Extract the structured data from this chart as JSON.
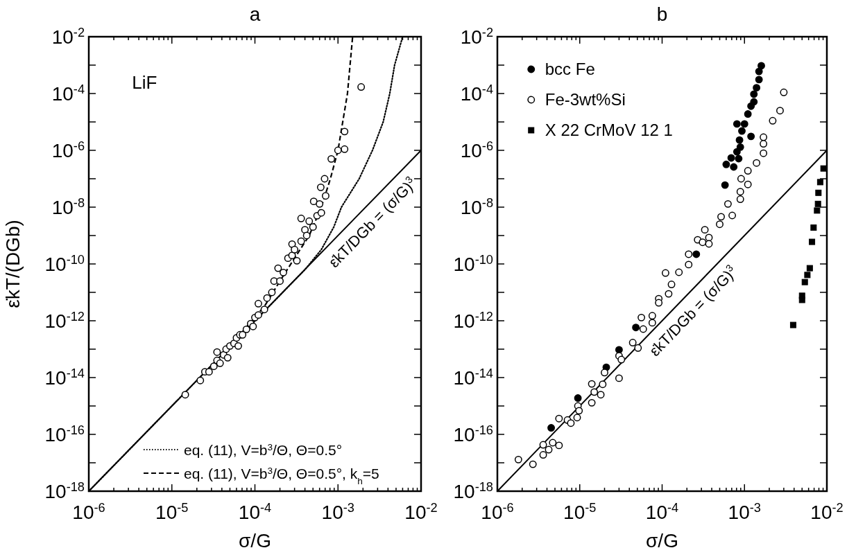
{
  "chart_data": [
    {
      "type": "scatter",
      "title": "a",
      "xlabel": "σ/G",
      "ylabel": "ε̇kT/(DGb)",
      "log": "xy",
      "xlim": [
        1e-06,
        0.01
      ],
      "ylim": [
        1e-18,
        0.01
      ],
      "xticks": [
        {
          "value": 1e-06,
          "label": "10$^{-6}$"
        },
        {
          "value": 2e-06,
          "label": null
        },
        {
          "value": 3e-06,
          "label": null
        },
        {
          "value": 4e-06,
          "label": null
        },
        {
          "value": 5e-06,
          "label": null
        },
        {
          "value": 6e-06,
          "label": null
        },
        {
          "value": 7e-06,
          "label": null
        },
        {
          "value": 8e-06,
          "label": null
        },
        {
          "value": 9e-06,
          "label": null
        },
        {
          "value": 1e-05,
          "label": "10$^{-5}$"
        },
        {
          "value": 2e-05,
          "label": null
        },
        {
          "value": 3e-05,
          "label": null
        },
        {
          "value": 4e-05,
          "label": null
        },
        {
          "value": 5e-05,
          "label": null
        },
        {
          "value": 6e-05,
          "label": null
        },
        {
          "value": 7e-05,
          "label": null
        },
        {
          "value": 8e-05,
          "label": null
        },
        {
          "value": 9e-05,
          "label": null
        },
        {
          "value": 0.0001,
          "label": "10$^{-4}$"
        },
        {
          "value": 0.0002,
          "label": null
        },
        {
          "value": 0.0003,
          "label": null
        },
        {
          "value": 0.0004,
          "label": null
        },
        {
          "value": 0.0005,
          "label": null
        },
        {
          "value": 0.0006,
          "label": null
        },
        {
          "value": 0.0007,
          "label": null
        },
        {
          "value": 0.0008,
          "label": null
        },
        {
          "value": 0.0009,
          "label": null
        },
        {
          "value": 0.001,
          "label": "10$^{-3}$"
        },
        {
          "value": 0.002,
          "label": null
        },
        {
          "value": 0.003,
          "label": null
        },
        {
          "value": 0.004,
          "label": null
        },
        {
          "value": 0.005,
          "label": null
        },
        {
          "value": 0.006,
          "label": null
        },
        {
          "value": 0.007,
          "label": null
        },
        {
          "value": 0.008,
          "label": null
        },
        {
          "value": 0.009,
          "label": null
        },
        {
          "value": 0.01,
          "label": "10$^{-2}$"
        }
      ],
      "yticks": [
        {
          "value": 1e-18,
          "label": "10$^{-18}$"
        },
        {
          "value": 1e-17,
          "label": null
        },
        {
          "value": 1e-16,
          "label": "10$^{-16}$"
        },
        {
          "value": 1e-15,
          "label": null
        },
        {
          "value": 1e-14,
          "label": "10$^{-14}$"
        },
        {
          "value": 1e-13,
          "label": null
        },
        {
          "value": 1e-12,
          "label": "10$^{-12}$"
        },
        {
          "value": 1e-11,
          "label": null
        },
        {
          "value": 1e-10,
          "label": "10$^{-10}$"
        },
        {
          "value": 1e-09,
          "label": null
        },
        {
          "value": 1e-08,
          "label": "10$^{-8}$"
        },
        {
          "value": 1e-07,
          "label": null
        },
        {
          "value": 1e-06,
          "label": "10$^{-6}$"
        },
        {
          "value": 1e-05,
          "label": null
        },
        {
          "value": 0.0001,
          "label": "10$^{-4}$"
        },
        {
          "value": 0.001,
          "label": null
        },
        {
          "value": 0.01,
          "label": "10$^{-2}$"
        }
      ],
      "legend": "bottom right",
      "annotations": [
        "LiF",
        "ε̇kT/DGb = (σ/G)$^{3}$"
      ],
      "series": [
        {
          "type": "line",
          "color": "#000000",
          "line_style": "solid",
          "x": [
            1e-06,
            0.01
          ],
          "values": [
            1e-18,
            1e-06
          ]
        },
        {
          "type": "line",
          "name": "eq. (11), V=b$^{3}$/Θ, Θ=0.5°",
          "color": "#000000",
          "line_style": "dotted",
          "x": [
            1e-06,
            0.0004,
            0.00063,
            0.00089,
            0.0011,
            0.0018,
            0.0026,
            0.0035,
            0.0042,
            0.0048,
            0.006
          ],
          "values": [
            1e-18,
            6.3e-11,
            3.2e-10,
            2e-09,
            1e-08,
            1e-07,
            1e-06,
            1e-05,
            0.0001,
            0.001,
            0.01
          ]
        },
        {
          "type": "line",
          "name": "eq. (11), V=b$^{3}$/Θ, Θ=0.5°, k$_{h}$=5",
          "color": "#000000",
          "line_style": "dashed",
          "x": [
            5e-05,
            0.00013,
            0.0002,
            0.0003,
            0.00045,
            0.00063,
            0.00081,
            0.001,
            0.0013,
            0.0015
          ],
          "values": [
            1.3e-13,
            3.2e-12,
            2.5e-11,
            1.6e-10,
            1e-09,
            1e-08,
            1e-07,
            1e-06,
            0.0001,
            0.01
          ]
        },
        {
          "color": "#ffffff",
          "marker": "circle",
          "x": [
            1.45e-05,
            2.2e-05,
            2.5e-05,
            2.8e-05,
            3.2e-05,
            3.5e-05,
            3.8e-05,
            4.2e-05,
            4.5e-05,
            4.7e-05,
            5e-05,
            5.6e-05,
            6e-05,
            6.3e-05,
            6.6e-05,
            7.1e-05,
            7.9e-05,
            8.9e-05,
            9.5e-05,
            0.0001,
            0.00011,
            0.00011,
            0.00013,
            0.00014,
            0.00016,
            0.00017,
            0.00019,
            0.0002,
            0.00022,
            0.00025,
            0.00028,
            0.00028,
            0.0003,
            0.00032,
            0.00036,
            0.00036,
            0.0004,
            0.00042,
            0.00045,
            0.0005,
            0.00051,
            0.00056,
            0.0006,
            0.00062,
            0.00063,
            0.00069,
            0.00071,
            0.00083,
            0.001,
            0.0012,
            0.0012,
            0.0019,
            3.5e-05
          ],
          "values": [
            2.5e-15,
            7.9e-15,
            1.6e-14,
            1.6e-14,
            2.5e-14,
            4e-14,
            3.2e-14,
            6.3e-14,
            1e-13,
            5e-14,
            1.3e-13,
            1.6e-13,
            2.5e-13,
            1.3e-13,
            3.2e-13,
            3.2e-13,
            5e-13,
            7.9e-13,
            6.3e-13,
            1.3e-12,
            4e-12,
            1.6e-12,
            2.5e-12,
            6.3e-12,
            1e-11,
            2.5e-11,
            7.1e-11,
            2.5e-11,
            5e-11,
            1.6e-10,
            5e-10,
            2e-10,
            3.2e-10,
            1.3e-10,
            4e-09,
            6.3e-10,
            1.6e-09,
            1e-09,
            3.2e-09,
            2e-09,
            1.6e-08,
            5e-09,
            1.3e-08,
            5e-08,
            6.3e-09,
            1e-07,
            2.5e-08,
            5e-07,
            1e-06,
            1.1e-06,
            4.6e-06,
            0.00017,
            7.9e-14
          ]
        }
      ]
    },
    {
      "type": "scatter",
      "title": "b",
      "xlabel": "σ/G",
      "log": "xy",
      "xlim": [
        1e-06,
        0.01
      ],
      "ylim": [
        1e-18,
        0.01
      ],
      "xticks": [
        {
          "value": 1e-06,
          "label": "10$^{-6}$"
        },
        {
          "value": 2e-06,
          "label": null
        },
        {
          "value": 3e-06,
          "label": null
        },
        {
          "value": 4e-06,
          "label": null
        },
        {
          "value": 5e-06,
          "label": null
        },
        {
          "value": 6e-06,
          "label": null
        },
        {
          "value": 7e-06,
          "label": null
        },
        {
          "value": 8e-06,
          "label": null
        },
        {
          "value": 9e-06,
          "label": null
        },
        {
          "value": 1e-05,
          "label": "10$^{-5}$"
        },
        {
          "value": 2e-05,
          "label": null
        },
        {
          "value": 3e-05,
          "label": null
        },
        {
          "value": 4e-05,
          "label": null
        },
        {
          "value": 5e-05,
          "label": null
        },
        {
          "value": 6e-05,
          "label": null
        },
        {
          "value": 7e-05,
          "label": null
        },
        {
          "value": 8e-05,
          "label": null
        },
        {
          "value": 9e-05,
          "label": null
        },
        {
          "value": 0.0001,
          "label": "10$^{-4}$"
        },
        {
          "value": 0.0002,
          "label": null
        },
        {
          "value": 0.0003,
          "label": null
        },
        {
          "value": 0.0004,
          "label": null
        },
        {
          "value": 0.0005,
          "label": null
        },
        {
          "value": 0.0006,
          "label": null
        },
        {
          "value": 0.0007,
          "label": null
        },
        {
          "value": 0.0008,
          "label": null
        },
        {
          "value": 0.0009,
          "label": null
        },
        {
          "value": 0.001,
          "label": "10$^{-3}$"
        },
        {
          "value": 0.002,
          "label": null
        },
        {
          "value": 0.003,
          "label": null
        },
        {
          "value": 0.004,
          "label": null
        },
        {
          "value": 0.005,
          "label": null
        },
        {
          "value": 0.006,
          "label": null
        },
        {
          "value": 0.007,
          "label": null
        },
        {
          "value": 0.008,
          "label": null
        },
        {
          "value": 0.009,
          "label": null
        },
        {
          "value": 0.01,
          "label": "10$^{-2}$"
        }
      ],
      "yticks": [
        {
          "value": 1e-18,
          "label": "10$^{-18}$"
        },
        {
          "value": 1e-17,
          "label": null
        },
        {
          "value": 1e-16,
          "label": "10$^{-16}$"
        },
        {
          "value": 1e-15,
          "label": null
        },
        {
          "value": 1e-14,
          "label": "10$^{-14}$"
        },
        {
          "value": 1e-13,
          "label": null
        },
        {
          "value": 1e-12,
          "label": "10$^{-12}$"
        },
        {
          "value": 1e-11,
          "label": null
        },
        {
          "value": 1e-10,
          "label": "10$^{-10}$"
        },
        {
          "value": 1e-09,
          "label": null
        },
        {
          "value": 1e-08,
          "label": "10$^{-8}$"
        },
        {
          "value": 1e-07,
          "label": null
        },
        {
          "value": 1e-06,
          "label": "10$^{-6}$"
        },
        {
          "value": 1e-05,
          "label": null
        },
        {
          "value": 0.0001,
          "label": "10$^{-4}$"
        },
        {
          "value": 0.001,
          "label": null
        },
        {
          "value": 0.01,
          "label": "10$^{-2}$"
        }
      ],
      "legend": "top left",
      "annotations": [
        "ε̇kT/DGb = (σ/G)$^{3}$"
      ],
      "series": [
        {
          "type": "line",
          "color": "#000000",
          "line_style": "solid",
          "x": [
            1e-06,
            0.01
          ],
          "values": [
            1e-18,
            1e-06
          ]
        },
        {
          "name": "bcc Fe",
          "color": "#000000",
          "marker": "circle",
          "x": [
            0.0016,
            0.0015,
            0.0015,
            0.0014,
            0.0013,
            0.0013,
            0.0012,
            0.0011,
            0.001,
            0.00081,
            0.00093,
            0.0012,
            0.00087,
            0.00089,
            0.00081,
            0.00069,
            0.00085,
            0.0006,
            0.00074,
            0.00058,
            0.00026,
            4.8e-05,
            3e-05,
            2.1e-05,
            9.5e-06,
            4.5e-06
          ],
          "values": [
            0.00095,
            0.0006,
            0.00031,
            0.00016,
            9.5e-05,
            5.1e-05,
            3.6e-05,
            1.9e-05,
            8.5e-06,
            8.5e-06,
            4.8e-06,
            3.1e-06,
            2.3e-06,
            1.3e-06,
            8.9e-07,
            5.4e-07,
            5.1e-07,
            3.2e-07,
            2.6e-07,
            6e-08,
            2.2e-10,
            5.8e-13,
            9.5e-14,
            2.3e-14,
            1.9e-15,
            1.7e-16
          ]
        },
        {
          "name": "Fe-3wt%Si",
          "color": "#ffffff",
          "marker": "circle",
          "x": [
            0.003,
            0.0027,
            0.0022,
            0.0017,
            0.0017,
            0.0017,
            0.0014,
            0.0011,
            0.00091,
            0.0011,
            0.00089,
            0.00089,
            0.00063,
            0.00071,
            0.00052,
            0.0005,
            0.00033,
            0.00027,
            0.00037,
            0.00031,
            0.00037,
            0.00021,
            0.00021,
            0.00016,
            0.00011,
            0.00013,
            0.00012,
            9.1e-05,
            9.1e-05,
            5.6e-05,
            7.6e-05,
            5.9e-05,
            7.6e-05,
            4.4e-05,
            5.1e-05,
            3e-05,
            3.2e-05,
            2e-05,
            3e-05,
            1.9e-05,
            1.4e-05,
            1.5e-05,
            1.8e-05,
            1.4e-05,
            9.5e-06,
            9.8e-06,
            9.3e-06,
            7.1e-06,
            7.8e-06,
            5.6e-06,
            3.6e-06,
            4.7e-06,
            4.2e-06,
            3.6e-06,
            5.6e-06,
            1.8e-06,
            2.7e-06
          ],
          "values": [
            0.00011,
            2.5e-05,
            1.1e-05,
            2.9e-06,
            1.7e-06,
            7.9e-07,
            3.6e-07,
            1.9e-07,
            1e-07,
            6.3e-08,
            3.5e-08,
            1.9e-08,
            1.3e-08,
            5.1e-09,
            4.6e-09,
            2.5e-09,
            1.6e-09,
            7.1e-10,
            8.5e-10,
            5.8e-10,
            5.1e-10,
            2.2e-10,
            9.5e-11,
            5.1e-11,
            4.8e-11,
            1.9e-11,
            8.9e-12,
            6e-12,
            4.3e-12,
            1.3e-12,
            1.5e-12,
            5.1e-13,
            8.5e-13,
            1.7e-13,
            1.1e-13,
            5.8e-14,
            4.3e-14,
            1.5e-14,
            9.5e-15,
            5.8e-15,
            6e-15,
            3.1e-15,
            2.5e-15,
            1.3e-15,
            1e-15,
            6.8e-16,
            3.9e-16,
            3.2e-16,
            2.5e-16,
            3.6e-16,
            4.3e-17,
            5.1e-17,
            2.9e-17,
            1.9e-17,
            4.1e-17,
            1.3e-17,
            8.9e-18
          ]
        },
        {
          "name": "X 22 CrMoV 12 1",
          "color": "#000000",
          "marker": "square",
          "x": [
            0.0039,
            0.005,
            0.005,
            0.0054,
            0.0058,
            0.0062,
            0.0066,
            0.0069,
            0.0076,
            0.0078,
            0.0079,
            0.0083,
            0.0091
          ],
          "values": [
            7.1e-13,
            5.4e-12,
            7.6e-12,
            2.3e-11,
            4.1e-11,
            7.1e-11,
            6e-10,
            1.9e-09,
            7.6e-09,
            1.3e-08,
            3.2e-08,
            7.6e-08,
            2.3e-07
          ]
        }
      ]
    }
  ]
}
